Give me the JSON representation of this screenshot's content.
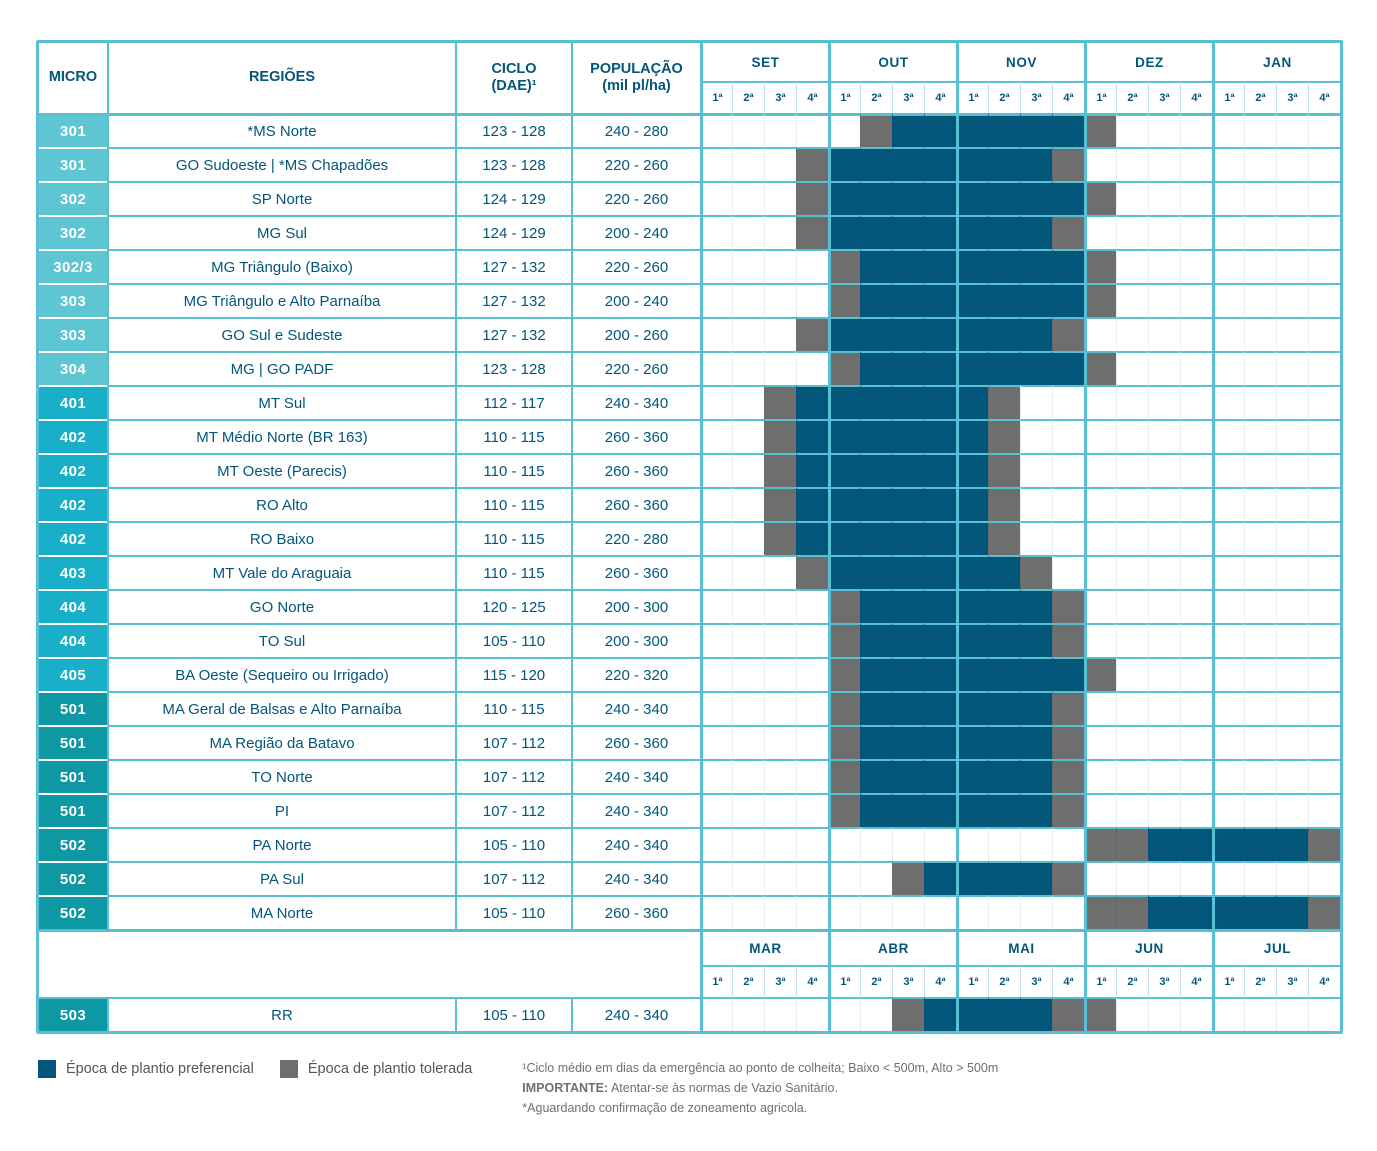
{
  "chart_data": {
    "type": "table",
    "headers": {
      "micro": "MICRO",
      "regioes": "REGIÕES",
      "ciclo_line1": "CICLO",
      "ciclo_line2": "(DAE)¹",
      "populacao_line1": "POPULAÇÃO",
      "populacao_line2": "(mil pl/ha)"
    },
    "months_top": [
      "SET",
      "OUT",
      "NOV",
      "DEZ",
      "JAN"
    ],
    "months_bottom": [
      "MAR",
      "ABR",
      "MAI",
      "JUN",
      "JUL"
    ],
    "week_labels": [
      "1ª",
      "2ª",
      "3ª",
      "4ª"
    ],
    "cell_states": {
      "P": "Época de plantio preferencial",
      "T": "Época de plantio tolerada",
      ".": "none"
    },
    "rows": [
      {
        "micro": "301",
        "g": "3",
        "region": "*MS Norte",
        "ciclo": "123 - 128",
        "populacao": "240 - 280",
        "weeks": ".....TPPPPPPT......."
      },
      {
        "micro": "301",
        "g": "3",
        "region": "GO Sudoeste | *MS Chapadões",
        "ciclo": "123 - 128",
        "populacao": "220 - 260",
        "weeks": "...TPPPPPPPT........"
      },
      {
        "micro": "302",
        "g": "3",
        "region": "SP Norte",
        "ciclo": "124 - 129",
        "populacao": "220 - 260",
        "weeks": "...TPPPPPPPPT......."
      },
      {
        "micro": "302",
        "g": "3",
        "region": "MG Sul",
        "ciclo": "124 - 129",
        "populacao": "200 - 240",
        "weeks": "...TPPPPPPPT........"
      },
      {
        "micro": "302/3",
        "g": "3",
        "region": "MG Triângulo (Baixo)",
        "ciclo": "127 - 132",
        "populacao": "220 - 260",
        "weeks": "....TPPPPPPPT......."
      },
      {
        "micro": "303",
        "g": "3",
        "region": "MG Triângulo e Alto Parnaíba",
        "ciclo": "127 - 132",
        "populacao": "200 - 240",
        "weeks": "....TPPPPPPPT......."
      },
      {
        "micro": "303",
        "g": "3",
        "region": "GO Sul e Sudeste",
        "ciclo": "127 - 132",
        "populacao": "200 - 260",
        "weeks": "...TPPPPPPPT........"
      },
      {
        "micro": "304",
        "g": "3",
        "region": "MG | GO PADF",
        "ciclo": "123 - 128",
        "populacao": "220 - 260",
        "weeks": "....TPPPPPPPT......."
      },
      {
        "micro": "401",
        "g": "4",
        "region": "MT Sul",
        "ciclo": "112 - 117",
        "populacao": "240 - 340",
        "weeks": "..TPPPPPPT.........."
      },
      {
        "micro": "402",
        "g": "4",
        "region": "MT Médio Norte (BR 163)",
        "ciclo": "110 - 115",
        "populacao": "260 - 360",
        "weeks": "..TPPPPPPT.........."
      },
      {
        "micro": "402",
        "g": "4",
        "region": "MT Oeste (Parecis)",
        "ciclo": "110 - 115",
        "populacao": "260 - 360",
        "weeks": "..TPPPPPPT.........."
      },
      {
        "micro": "402",
        "g": "4",
        "region": "RO Alto",
        "ciclo": "110 - 115",
        "populacao": "260 - 360",
        "weeks": "..TPPPPPPT.........."
      },
      {
        "micro": "402",
        "g": "4",
        "region": "RO Baixo",
        "ciclo": "110 - 115",
        "populacao": "220 - 280",
        "weeks": "..TPPPPPPT.........."
      },
      {
        "micro": "403",
        "g": "4",
        "region": "MT Vale do Araguaia",
        "ciclo": "110 - 115",
        "populacao": "260 - 360",
        "weeks": "...TPPPPPPT........."
      },
      {
        "micro": "404",
        "g": "4",
        "region": "GO Norte",
        "ciclo": "120 - 125",
        "populacao": "200 - 300",
        "weeks": "....TPPPPPPT........"
      },
      {
        "micro": "404",
        "g": "4",
        "region": "TO Sul",
        "ciclo": "105 - 110",
        "populacao": "200 - 300",
        "weeks": "....TPPPPPPT........"
      },
      {
        "micro": "405",
        "g": "4",
        "region": "BA Oeste (Sequeiro ou Irrigado)",
        "ciclo": "115 - 120",
        "populacao": "220 - 320",
        "weeks": "....TPPPPPPPT......."
      },
      {
        "micro": "501",
        "g": "5",
        "region": "MA Geral de Balsas e Alto Parnaíba",
        "ciclo": "110 - 115",
        "populacao": "240 - 340",
        "weeks": "....TPPPPPPT........"
      },
      {
        "micro": "501",
        "g": "5",
        "region": "MA Região da Batavo",
        "ciclo": "107 - 112",
        "populacao": "260 - 360",
        "weeks": "....TPPPPPPT........"
      },
      {
        "micro": "501",
        "g": "5",
        "region": "TO Norte",
        "ciclo": "107 - 112",
        "populacao": "240 - 340",
        "weeks": "....TPPPPPPT........"
      },
      {
        "micro": "501",
        "g": "5",
        "region": "PI",
        "ciclo": "107 - 112",
        "populacao": "240 - 340",
        "weeks": "....TPPPPPPT........"
      },
      {
        "micro": "502",
        "g": "5",
        "region": "PA Norte",
        "ciclo": "105 - 110",
        "populacao": "240 - 340",
        "weeks": "............TTPPPPPT"
      },
      {
        "micro": "502",
        "g": "5",
        "region": "PA Sul",
        "ciclo": "107 - 112",
        "populacao": "240 - 340",
        "weeks": "......TPPPPT........"
      },
      {
        "micro": "502",
        "g": "5",
        "region": "MA Norte",
        "ciclo": "105 - 110",
        "populacao": "260 - 360",
        "weeks": "............TTPPPPPT"
      }
    ],
    "rows_bottom": [
      {
        "micro": "503",
        "g": "5",
        "region": "RR",
        "ciclo": "105 - 110",
        "populacao": "240 - 340",
        "weeks": "......TPPPPTT......."
      }
    ]
  },
  "legend": {
    "preferencial": "Época de plantio preferencial",
    "tolerada": "Época de plantio tolerada"
  },
  "footnotes": {
    "ciclo": "¹Ciclo médio em dias da emergência ao ponto de colheita; Baixo < 500m, Alto > 500m",
    "importante_prefix": "IMPORTANTE:",
    "importante_text": "Atentar-se às normas de Vazio Sanitário.",
    "zoneamento": "*Aguardando confirmação de zoneamento agricola."
  },
  "colors": {
    "preferencial": "#03567a",
    "tolerada": "#6e6e6e",
    "border": "#57c0d3",
    "header_text": "#03567a",
    "micro_3": "#5ec5d3",
    "micro_4": "#1aafc9",
    "micro_5": "#0d98a4"
  }
}
